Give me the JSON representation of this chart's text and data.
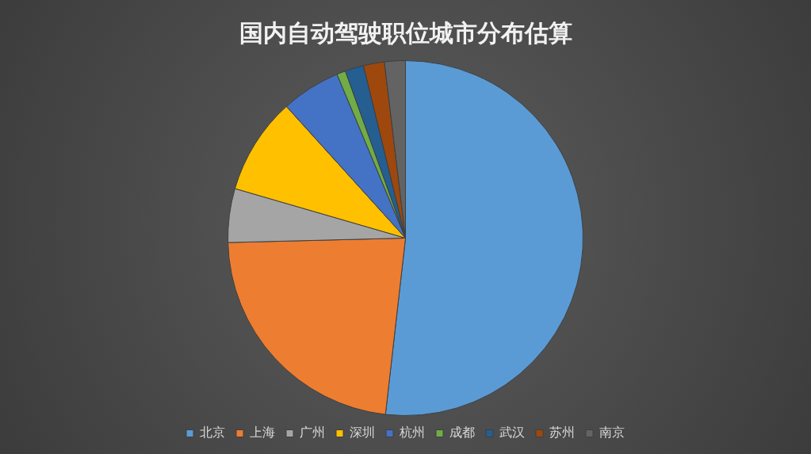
{
  "chart_data": {
    "type": "pie",
    "title": "国内自动驾驶职位城市分布估算",
    "categories": [
      "北京",
      "上海",
      "广州",
      "深圳",
      "杭州",
      "成都",
      "武汉",
      "苏州",
      "南京"
    ],
    "values": [
      51.8,
      22.8,
      4.9,
      8.8,
      5.4,
      0.8,
      1.7,
      1.9,
      1.9
    ],
    "colors": [
      "#5b9bd5",
      "#ed7d31",
      "#a5a5a5",
      "#ffc000",
      "#4472c4",
      "#70ad47",
      "#255e91",
      "#9e480e",
      "#636363"
    ],
    "legend": "bottom"
  }
}
